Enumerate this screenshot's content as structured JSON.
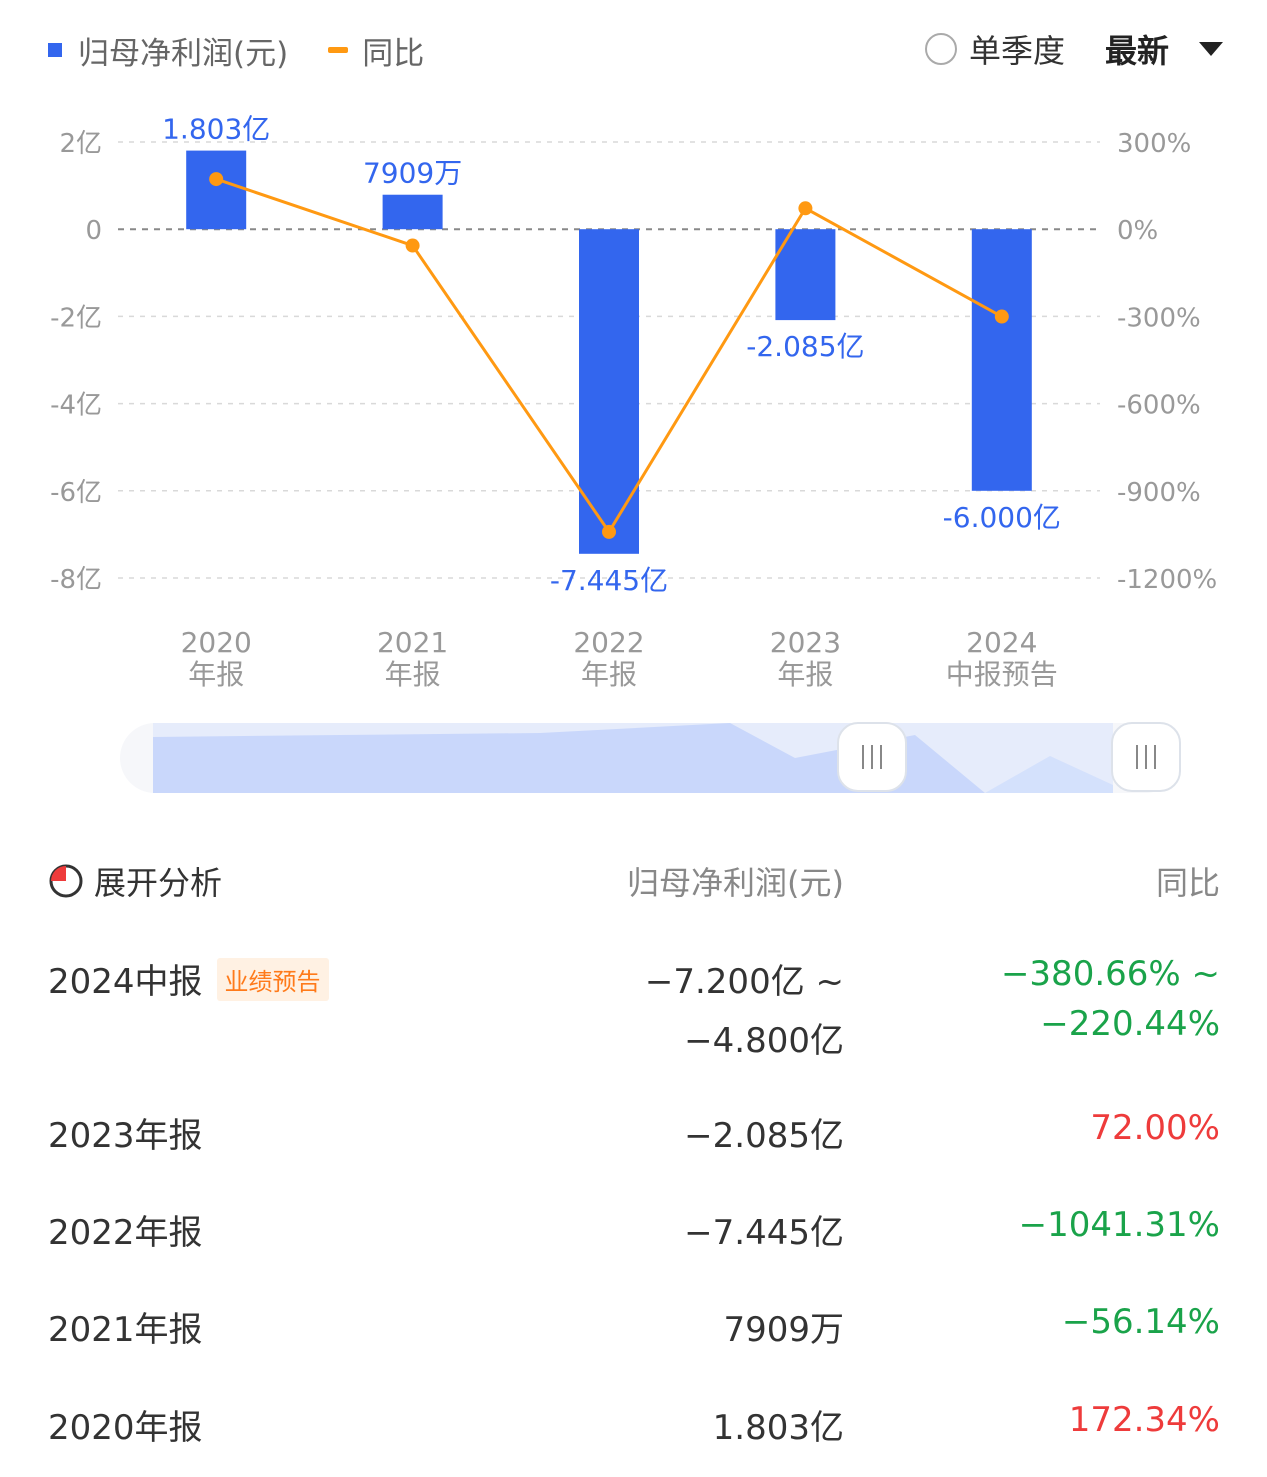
{
  "legend": {
    "net_profit": "归母净利润(元)",
    "yoy": "同比"
  },
  "controls": {
    "single_quarter": "单季度",
    "latest": "最新"
  },
  "colors": {
    "bar": "#3366ee",
    "line": "#ff9912",
    "green": "#1aa34a",
    "red": "#ee3b3b"
  },
  "chart_data": {
    "type": "bar",
    "categories": [
      [
        "2020",
        "年报"
      ],
      [
        "2021",
        "年报"
      ],
      [
        "2022",
        "年报"
      ],
      [
        "2023",
        "年报"
      ],
      [
        "2024",
        "中报预告"
      ]
    ],
    "series": [
      {
        "name": "归母净利润(元)",
        "type": "bar",
        "axis": "left",
        "values": [
          1.803,
          0.7909,
          -7.445,
          -2.085,
          -6.0
        ],
        "labels": [
          "1.803亿",
          "7909万",
          "-7.445亿",
          "-2.085亿",
          "-6.000亿"
        ]
      },
      {
        "name": "同比",
        "type": "line",
        "axis": "right",
        "values": [
          172.34,
          -56.14,
          -1041.31,
          72.0,
          -300.55
        ]
      }
    ],
    "y_left": {
      "ticks": [
        2,
        0,
        -2,
        -4,
        -6,
        -8
      ],
      "tick_labels": [
        "2亿",
        "0",
        "-2亿",
        "-4亿",
        "-6亿",
        "-8亿"
      ],
      "ylim": [
        -8,
        2
      ]
    },
    "y_right": {
      "ticks": [
        300,
        0,
        -300,
        -600,
        -900,
        -1200
      ],
      "tick_labels": [
        "300%",
        "0%",
        "-300%",
        "-600%",
        "-900%",
        "-1200%"
      ],
      "ylim": [
        -1200,
        300
      ]
    },
    "grid": true
  },
  "table": {
    "expand_label": "展开分析",
    "col_value": "归母净利润(元)",
    "col_yoy": "同比",
    "rows": [
      {
        "period": "2024中报",
        "badge": "业绩预告",
        "value": "−7.200亿 ~",
        "value2": "−4.800亿",
        "yoy": "−380.66% ~",
        "yoy2": "−220.44%",
        "trend": "down"
      },
      {
        "period": "2023年报",
        "value": "−2.085亿",
        "yoy": "72.00%",
        "trend": "up"
      },
      {
        "period": "2022年报",
        "value": "−7.445亿",
        "yoy": "−1041.31%",
        "trend": "down"
      },
      {
        "period": "2021年报",
        "value": "7909万",
        "yoy": "−56.14%",
        "trend": "down"
      },
      {
        "period": "2020年报",
        "value": "1.803亿",
        "yoy": "172.34%",
        "trend": "up"
      }
    ]
  }
}
